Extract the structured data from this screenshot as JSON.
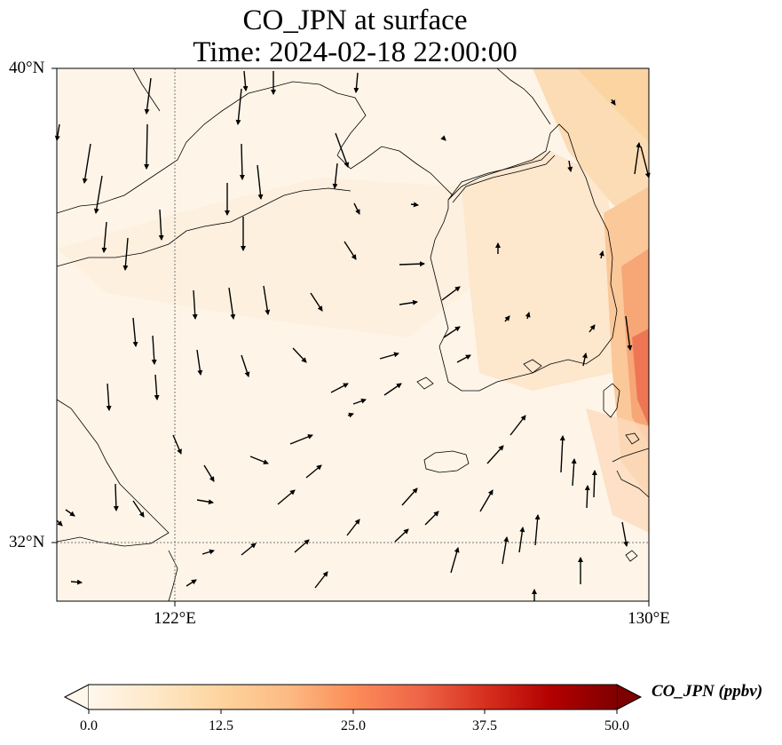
{
  "title": {
    "line1": "CO_JPN at surface",
    "line2": "Time: 2024-02-18 22:00:00"
  },
  "axes": {
    "lat_labels": [
      "40°N",
      "32°N"
    ],
    "lon_labels": [
      "122°E",
      "130°E"
    ],
    "lat_range": [
      31,
      40
    ],
    "lon_range": [
      120,
      130
    ]
  },
  "colorbar": {
    "label": "CO_JPN (ppbv)",
    "ticks": [
      "0.0",
      "12.5",
      "25.0",
      "37.5",
      "50.0"
    ],
    "range": [
      0,
      50
    ],
    "colormap": "OrRd",
    "colors": [
      "#fff7ec",
      "#fee8c8",
      "#fdd49e",
      "#fdbb84",
      "#fc8d59",
      "#ef6548",
      "#d7301f",
      "#b30000",
      "#7f0000"
    ],
    "extend": "both"
  },
  "chart_data": {
    "type": "map",
    "variable": "CO_JPN",
    "level": "surface",
    "units": "ppbv",
    "gridlines": {
      "lon": [
        122,
        130
      ],
      "lat": [
        32,
        40
      ]
    },
    "field_note_values_ppbv": {
      "west_yellow_sea": 2,
      "korea_interior": 8,
      "northeast_corner": 12,
      "korea_east_coast": 25
    },
    "wind_vectors": "quiver arrows, predominantly southward over the north/west and northeastward over the southern sea"
  }
}
